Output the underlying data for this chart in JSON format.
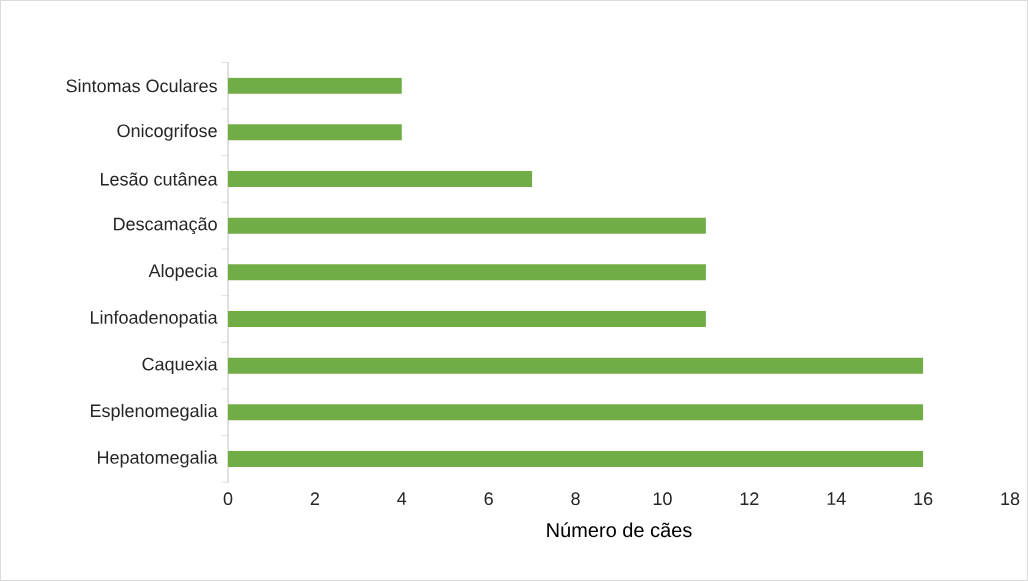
{
  "chart_data": {
    "type": "bar",
    "orientation": "horizontal",
    "xlabel": "Número de cães",
    "categories": [
      "Sintomas Oculares",
      "Onicogrifose",
      "Lesão cutânea",
      "Descamação",
      "Alopecia",
      "Linfoadenopatia",
      "Caquexia",
      "Esplenomegalia",
      "Hepatomegalia"
    ],
    "values": [
      4,
      4,
      7,
      11,
      11,
      11,
      16,
      16,
      16
    ],
    "color": "#70ad47",
    "xlim": [
      0,
      18
    ],
    "xticks": [
      0,
      2,
      4,
      6,
      8,
      10,
      12,
      14,
      16,
      18
    ],
    "grid": false
  }
}
